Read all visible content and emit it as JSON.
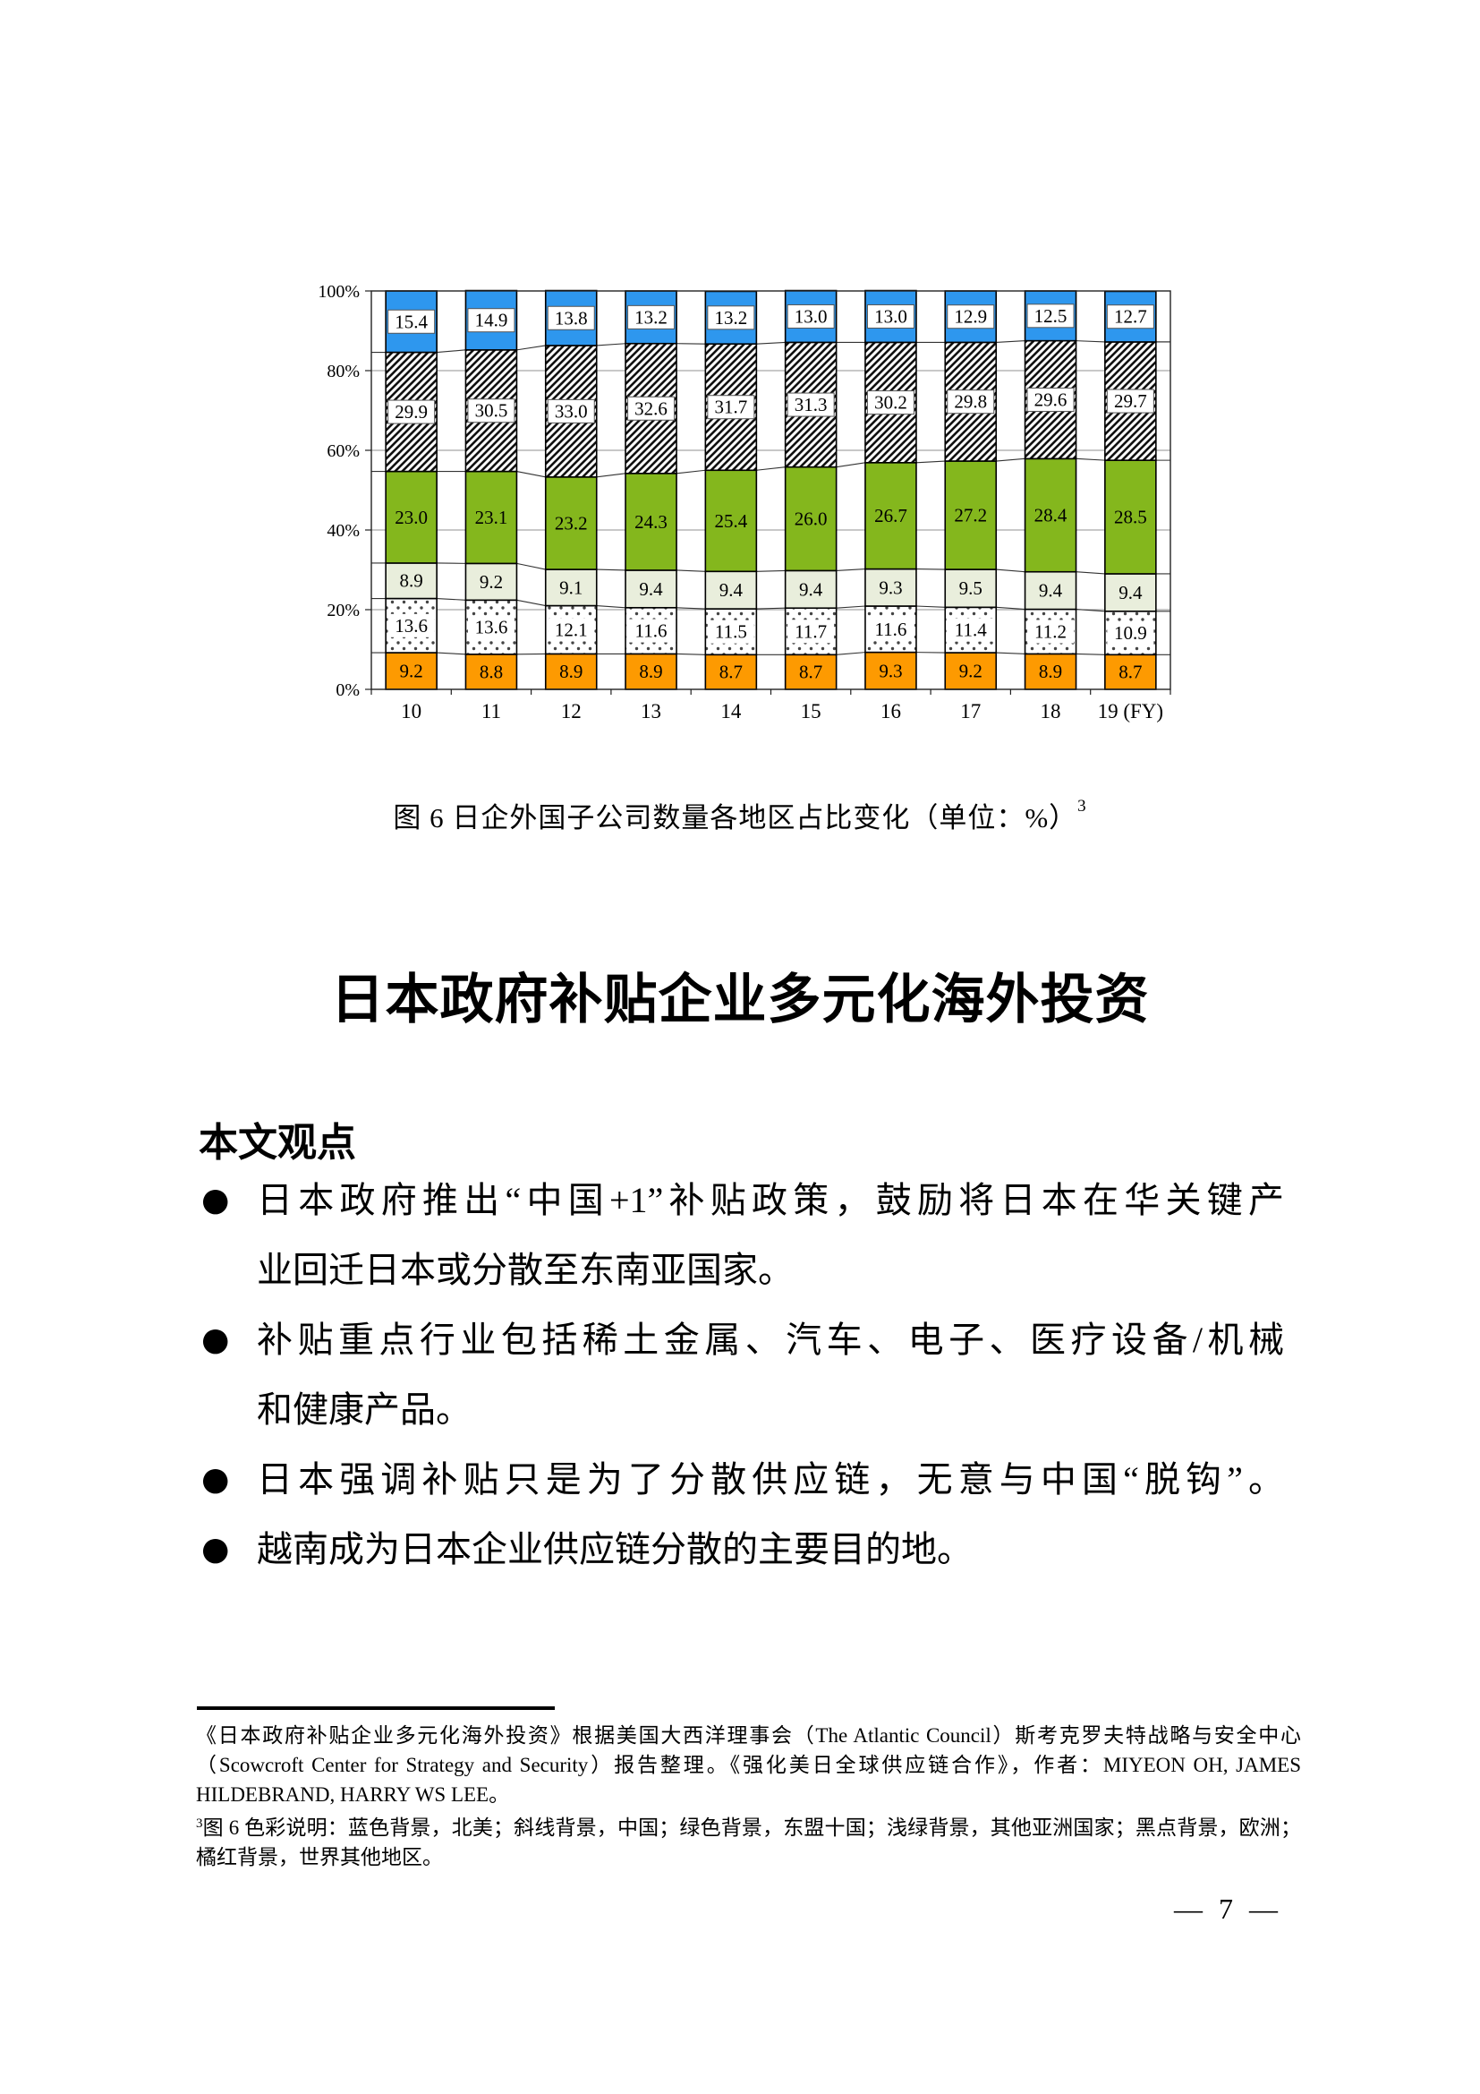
{
  "page": {
    "number_label": "— 7 —"
  },
  "figure": {
    "caption_main": "图 6  日企外国子公司数量各地区占比变化（单位：%）",
    "caption_footnote_ref": "3"
  },
  "chart_data": {
    "type": "bar",
    "stacked": true,
    "percent_stacked": true,
    "unit": "%",
    "title": "",
    "xlabel": "",
    "ylabel": "",
    "ylim": [
      0,
      100
    ],
    "grid": true,
    "legend_position": "none (styles explained in footnote 3)",
    "categories": [
      "10",
      "11",
      "12",
      "13",
      "14",
      "15",
      "16",
      "17",
      "18",
      "19 (FY)"
    ],
    "y_ticks": [
      "0%",
      "20%",
      "40%",
      "60%",
      "80%",
      "100%"
    ],
    "colors": {
      "blue": "#2E97EE",
      "green": "#84B71D",
      "palegreen": "#E9EEDC",
      "orange": "#FD9A01",
      "hatch_fg": "#111111",
      "dot_fg": "#444444"
    },
    "series": [
      {
        "name": "世界其他地区",
        "style": "orange",
        "values": [
          9.2,
          8.8,
          8.9,
          8.9,
          8.7,
          8.7,
          9.3,
          9.2,
          8.9,
          8.7
        ],
        "labels": [
          "9.2",
          "8.8",
          "8.9",
          "8.9",
          "8.7",
          "8.7",
          "9.3",
          "9.2",
          "8.9",
          "8.7"
        ]
      },
      {
        "name": "欧洲",
        "style": "dots",
        "values": [
          13.6,
          13.6,
          12.1,
          11.6,
          11.5,
          11.7,
          11.6,
          11.4,
          11.2,
          10.9
        ],
        "labels": [
          "13.6",
          "13.6",
          "12.1",
          "11.6",
          "11.5",
          "11.7",
          "11.6",
          "11.4",
          "11.2",
          "10.9"
        ]
      },
      {
        "name": "其他亚洲国家",
        "style": "palegreen",
        "values": [
          8.9,
          9.2,
          9.1,
          9.4,
          9.4,
          9.4,
          9.3,
          9.5,
          9.4,
          9.4
        ],
        "labels": [
          "8.9",
          "9.2",
          "9.1",
          "9.4",
          "9.4",
          "9.4",
          "9.3",
          "9.5",
          "9.4",
          "9.4"
        ]
      },
      {
        "name": "东盟十国",
        "style": "green",
        "values": [
          23.0,
          23.1,
          23.2,
          24.3,
          25.4,
          26.0,
          26.7,
          27.2,
          28.4,
          28.5
        ],
        "labels": [
          "23.0",
          "23.1",
          "23.2",
          "24.3",
          "25.4",
          "26.0",
          "26.7",
          "27.2",
          "28.4",
          "28.5"
        ]
      },
      {
        "name": "中国",
        "style": "hatch",
        "values": [
          29.9,
          30.5,
          33.0,
          32.6,
          31.7,
          31.3,
          30.2,
          29.8,
          29.6,
          29.7
        ],
        "labels": [
          "29.9",
          "30.5",
          "33.0",
          "32.6",
          "31.7",
          "31.3",
          "30.2",
          "29.8",
          "29.6",
          "29.7"
        ]
      },
      {
        "name": "北美",
        "style": "blue",
        "values": [
          15.4,
          14.9,
          13.8,
          13.2,
          13.2,
          13.0,
          13.0,
          12.9,
          12.5,
          12.7
        ],
        "labels": [
          "15.4",
          "14.9",
          "13.8",
          "13.2",
          "13.2",
          "13.0",
          "13.0",
          "12.9",
          "12.5",
          "12.7"
        ]
      }
    ]
  },
  "article": {
    "title": "日本政府补贴企业多元化海外投资",
    "section_heading": "本文观点",
    "bullet_marker": "●",
    "bullets": [
      {
        "lines": [
          {
            "text": "日本政府推出“中国+1”补贴政策，鼓励将日本在华关键产",
            "justify": true
          },
          {
            "text": "业回迁日本或分散至东南亚国家。",
            "justify": false
          }
        ]
      },
      {
        "lines": [
          {
            "text": "补贴重点行业包括稀土金属、汽车、电子、医疗设备/机械",
            "justify": true
          },
          {
            "text": "和健康产品。",
            "justify": false
          }
        ]
      },
      {
        "lines": [
          {
            "text": "日本强调补贴只是为了分散供应链，无意与中国“脱钩”。",
            "justify": true
          }
        ]
      },
      {
        "lines": [
          {
            "text": "越南成为日本企业供应链分散的主要目的地。",
            "justify": false
          }
        ]
      }
    ]
  },
  "footnotes": {
    "source": {
      "text": "《日本政府补贴企业多元化海外投资》根据美国大西洋理事会（The Atlantic Council）斯考克罗夫特战略与安全中心（Scowcroft Center for Strategy and Security）报告整理。《强化美日全球供应链合作》，作者：MIYEON OH, JAMES HILDEBRAND, HARRY WS LEE。"
    },
    "legend": {
      "marker": "3",
      "text": "图 6 色彩说明：蓝色背景，北美；斜线背景，中国；绿色背景，东盟十国；浅绿背景，其他亚洲国家；黑点背景，欧洲；橘红背景，世界其他地区。"
    }
  }
}
